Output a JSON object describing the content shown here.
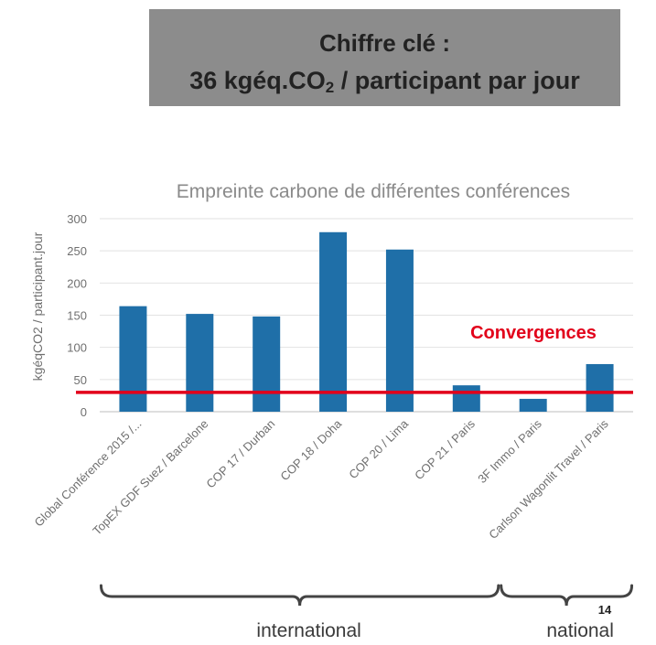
{
  "key_figure": {
    "line1": "Chiffre clé :",
    "line2_pre": "36 kgéq.CO",
    "line2_sub": "2",
    "line2_post": " / participant par jour"
  },
  "chart_data": {
    "type": "bar",
    "title": "Empreinte carbone de différentes conférences",
    "xlabel": "",
    "ylabel": "kgéqCO2 / participant.jour",
    "ylim": [
      0,
      300
    ],
    "yticks": [
      0,
      50,
      100,
      150,
      200,
      250,
      300
    ],
    "grid": true,
    "categories": [
      "Global Conférence 2015 /...",
      "TopEX GDF Suez / Barcelone",
      "COP 17 / Durban",
      "COP 18 / Doha",
      "COP 20 / Lima",
      "COP 21 / Paris",
      "3F Immo / Paris",
      "Carlson Wagonlit Travel / Paris"
    ],
    "values": [
      164,
      152,
      148,
      279,
      252,
      41,
      20,
      74
    ],
    "bar_color": "#1f6fa8",
    "reference_line": {
      "value": 30,
      "label": "Convergences",
      "color": "#e2001a"
    },
    "groups": [
      {
        "label": "international",
        "from": 0,
        "to": 5
      },
      {
        "label": "national",
        "from": 6,
        "to": 7
      }
    ]
  },
  "page_number": "14"
}
